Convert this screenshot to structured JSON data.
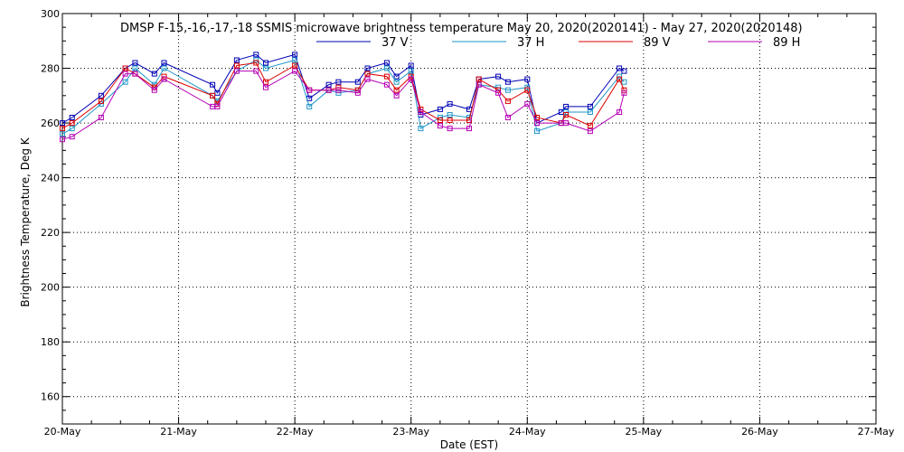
{
  "chart_data": {
    "type": "line",
    "title": "DMSP F-15,-16,-17,-18 SSMIS microwave brightness temperature May 20, 2020(2020141) - May 27, 2020(2020148)",
    "xlabel": "Date (EST)",
    "ylabel": "Brightness Temperature, Deg K",
    "x_ticks": [
      "20-May",
      "21-May",
      "22-May",
      "23-May",
      "24-May",
      "25-May",
      "26-May",
      "27-May"
    ],
    "x_tick_dates": [
      "2020-05-20",
      "2020-05-21",
      "2020-05-22",
      "2020-05-23",
      "2020-05-24",
      "2020-05-25",
      "2020-05-26",
      "2020-05-27"
    ],
    "xlim": [
      "2020-05-20T00:00",
      "2020-05-27T00:00"
    ],
    "ylim": [
      150,
      300
    ],
    "y_ticks": [
      160,
      180,
      200,
      220,
      240,
      260,
      280,
      300
    ],
    "grid": true,
    "legend": "top-center",
    "x": [
      "2020-05-20T00:00",
      "2020-05-20T02:00",
      "2020-05-20T08:00",
      "2020-05-20T13:00",
      "2020-05-20T15:00",
      "2020-05-20T19:00",
      "2020-05-20T21:00",
      "2020-05-21T07:00",
      "2020-05-21T08:00",
      "2020-05-21T12:00",
      "2020-05-21T16:00",
      "2020-05-21T18:00",
      "2020-05-22T00:00",
      "2020-05-22T03:00",
      "2020-05-22T07:00",
      "2020-05-22T09:00",
      "2020-05-22T13:00",
      "2020-05-22T15:00",
      "2020-05-22T19:00",
      "2020-05-22T21:00",
      "2020-05-23T00:00",
      "2020-05-23T02:00",
      "2020-05-23T06:00",
      "2020-05-23T08:00",
      "2020-05-23T12:00",
      "2020-05-23T14:00",
      "2020-05-23T18:00",
      "2020-05-23T20:00",
      "2020-05-24T00:00",
      "2020-05-24T02:00",
      "2020-05-24T07:00",
      "2020-05-24T08:00",
      "2020-05-24T13:00",
      "2020-05-24T19:00",
      "2020-05-24T20:00"
    ],
    "series": [
      {
        "name": "37 V",
        "color": "#0000b4",
        "values": [
          260,
          262,
          270,
          280,
          282,
          278,
          282,
          274,
          271,
          283,
          285,
          282,
          285,
          269,
          274,
          275,
          275,
          280,
          282,
          277,
          281,
          263,
          265,
          267,
          265,
          276,
          277,
          275,
          276,
          260,
          264,
          266,
          266,
          280,
          279
        ]
      },
      {
        "name": "37 H",
        "color": "#1e96c8",
        "values": [
          256,
          258,
          267,
          275,
          280,
          274,
          280,
          270,
          268,
          279,
          283,
          280,
          283,
          266,
          272,
          271,
          272,
          278,
          280,
          275,
          279,
          258,
          262,
          263,
          262,
          274,
          273,
          272,
          273,
          257,
          260,
          264,
          264,
          277,
          275
        ]
      },
      {
        "name": "89 V",
        "color": "#dc0000",
        "values": [
          258,
          260,
          268,
          280,
          278,
          273,
          277,
          270,
          267,
          281,
          282,
          275,
          281,
          272,
          272,
          273,
          272,
          278,
          277,
          272,
          277,
          265,
          261,
          261,
          261,
          276,
          272,
          268,
          272,
          262,
          260,
          263,
          259,
          276,
          272
        ]
      },
      {
        "name": "89 H",
        "color": "#b400b4",
        "values": [
          254,
          255,
          262,
          278,
          278,
          272,
          276,
          266,
          266,
          279,
          279,
          273,
          279,
          272,
          272,
          272,
          271,
          276,
          274,
          270,
          276,
          264,
          259,
          258,
          258,
          274,
          271,
          262,
          267,
          260,
          260,
          260,
          257,
          264,
          271
        ]
      }
    ]
  }
}
